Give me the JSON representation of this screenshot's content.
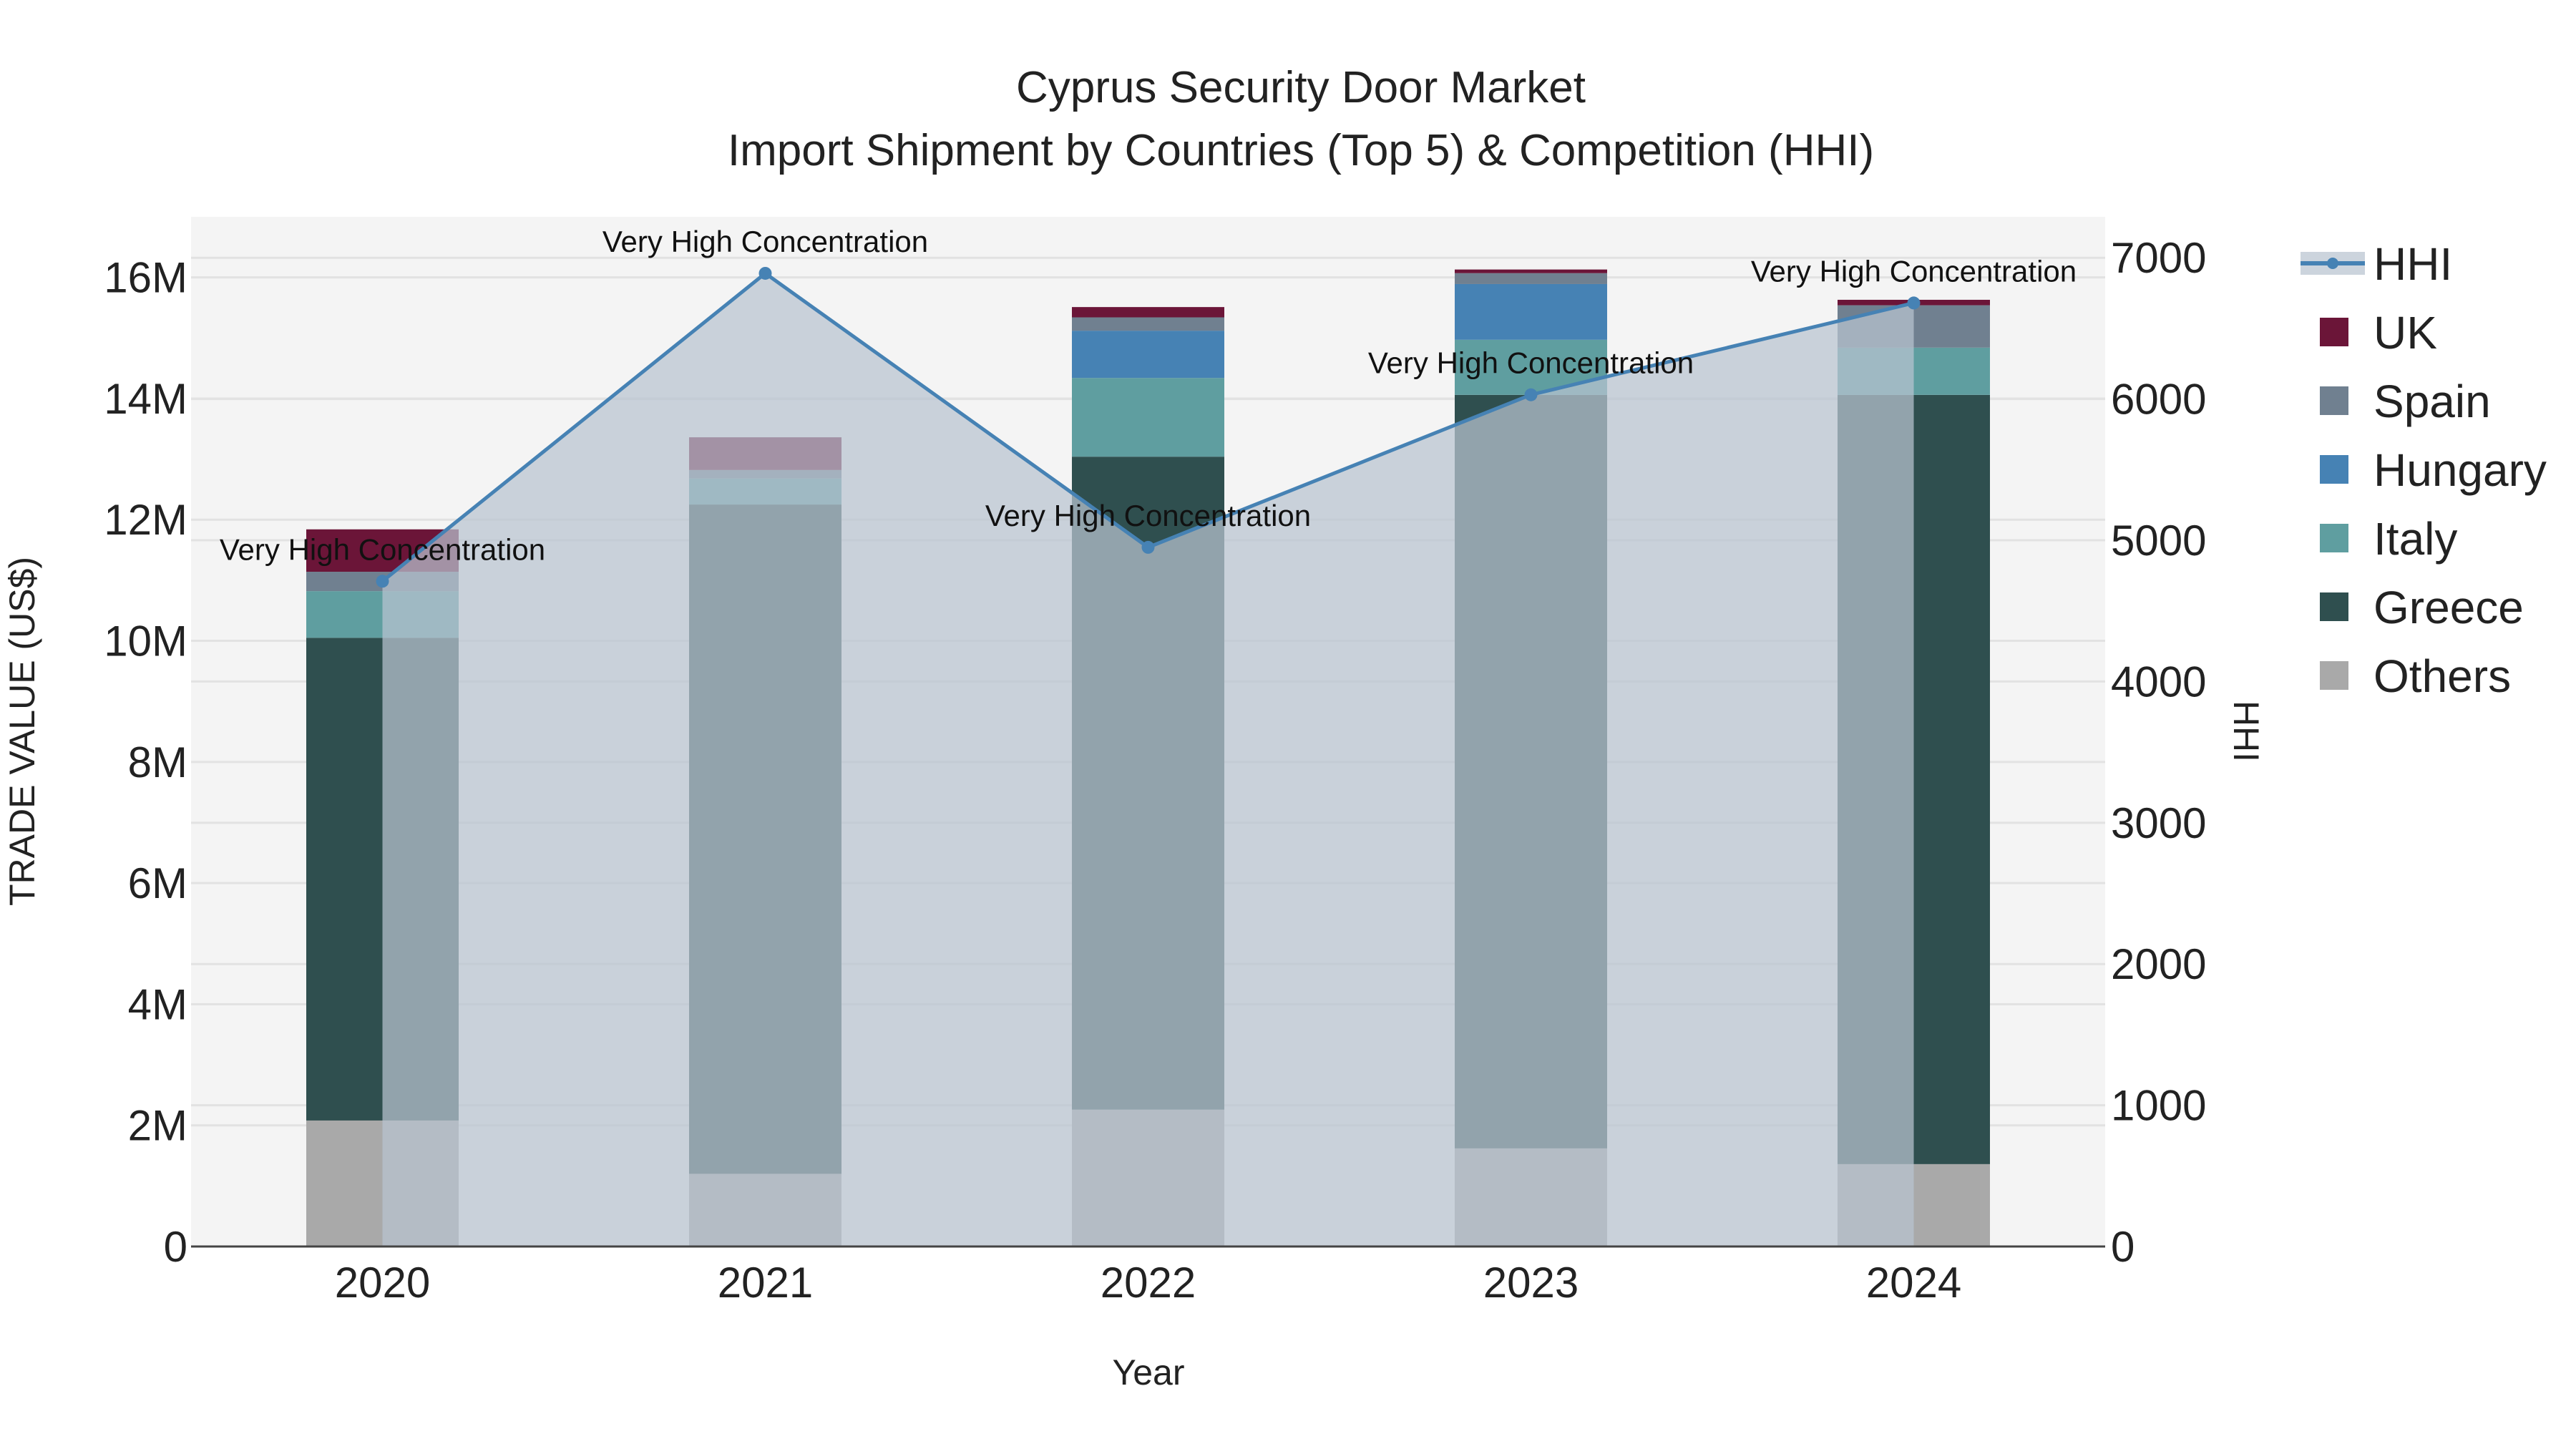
{
  "chart_data": {
    "type": "bar",
    "title": "Cyprus Security Door Market",
    "subtitle": "Import Shipment by Countries (Top 5) & Competition (HHI)",
    "xlabel": "Year",
    "ylabel": "TRADE VALUE (US$)",
    "y2label": "HHI",
    "categories": [
      "2020",
      "2021",
      "2022",
      "2023",
      "2024"
    ],
    "ylim": [
      0,
      17000000
    ],
    "y_ticks": [
      {
        "value": 0,
        "label": "0"
      },
      {
        "value": 2000000,
        "label": "2M"
      },
      {
        "value": 4000000,
        "label": "4M"
      },
      {
        "value": 6000000,
        "label": "6M"
      },
      {
        "value": 8000000,
        "label": "8M"
      },
      {
        "value": 10000000,
        "label": "10M"
      },
      {
        "value": 12000000,
        "label": "12M"
      },
      {
        "value": 14000000,
        "label": "14M"
      },
      {
        "value": 16000000,
        "label": "16M"
      }
    ],
    "y2lim": [
      0,
      7290
    ],
    "y2_ticks": [
      {
        "value": 0,
        "label": "0"
      },
      {
        "value": 1000,
        "label": "1000"
      },
      {
        "value": 2000,
        "label": "2000"
      },
      {
        "value": 3000,
        "label": "3000"
      },
      {
        "value": 4000,
        "label": "4000"
      },
      {
        "value": 5000,
        "label": "5000"
      },
      {
        "value": 6000,
        "label": "6000"
      },
      {
        "value": 7000,
        "label": "7000"
      }
    ],
    "series": [
      {
        "name": "Others",
        "color": "#a9a9a9",
        "values": [
          2080000,
          1200000,
          2260000,
          1620000,
          1360000
        ]
      },
      {
        "name": "Greece",
        "color": "#2f4f4f",
        "values": [
          7970000,
          11050000,
          10780000,
          12440000,
          12700000
        ]
      },
      {
        "name": "Italy",
        "color": "#5f9ea0",
        "values": [
          770000,
          430000,
          1300000,
          910000,
          780000
        ]
      },
      {
        "name": "Hungary",
        "color": "#4682b4",
        "values": [
          0,
          0,
          780000,
          920000,
          0
        ]
      },
      {
        "name": "Spain",
        "color": "#708090",
        "values": [
          320000,
          140000,
          220000,
          180000,
          700000
        ]
      },
      {
        "name": "UK",
        "color": "#6b1538",
        "values": [
          700000,
          540000,
          170000,
          60000,
          90000
        ]
      }
    ],
    "legend_order": [
      "UK",
      "Spain",
      "Hungary",
      "Italy",
      "Greece",
      "Others"
    ],
    "hhi": {
      "name": "HHI",
      "color": "#4682b4",
      "values": [
        4710,
        6890,
        4950,
        6030,
        6680
      ],
      "annotations": [
        "Very High Concentration",
        "Very High Concentration",
        "Very High Concentration",
        "Very High Concentration",
        "Very High Concentration"
      ]
    },
    "legend_position": "right"
  }
}
